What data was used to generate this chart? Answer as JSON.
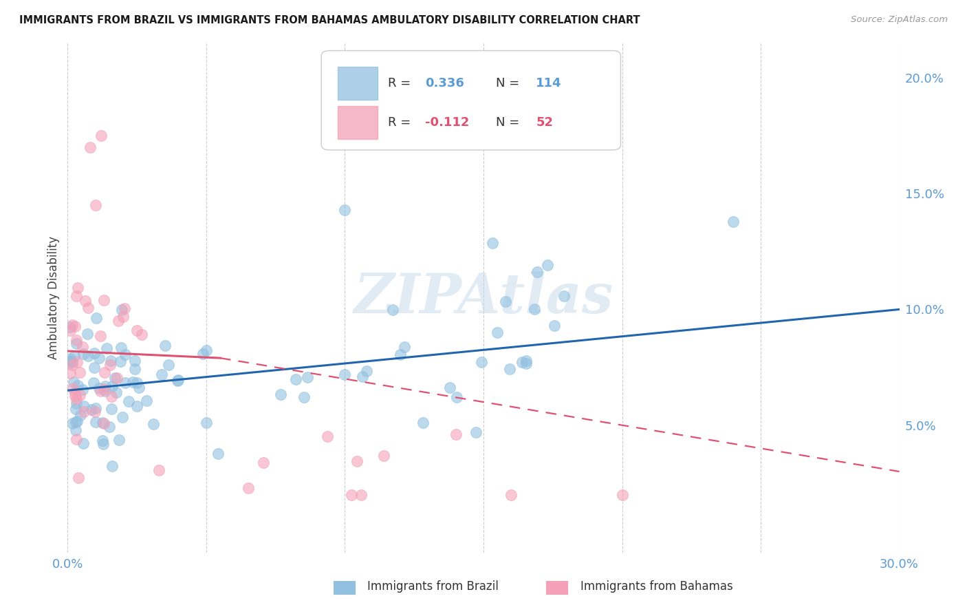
{
  "title": "IMMIGRANTS FROM BRAZIL VS IMMIGRANTS FROM BAHAMAS AMBULATORY DISABILITY CORRELATION CHART",
  "source": "Source: ZipAtlas.com",
  "ylabel": "Ambulatory Disability",
  "xlim": [
    0.0,
    0.3
  ],
  "ylim": [
    -0.005,
    0.215
  ],
  "y_ticks": [
    0.05,
    0.1,
    0.15,
    0.2
  ],
  "y_tick_labels": [
    "5.0%",
    "10.0%",
    "15.0%",
    "20.0%"
  ],
  "brazil_color": "#92c0e0",
  "bahamas_color": "#f4a0b8",
  "brazil_line_color": "#2166ac",
  "bahamas_line_color": "#e05070",
  "brazil_R": 0.336,
  "brazil_N": 114,
  "bahamas_R": -0.112,
  "bahamas_N": 52,
  "legend_label_brazil": "Immigrants from Brazil",
  "legend_label_bahamas": "Immigrants from Bahamas",
  "watermark": "ZIPAtlas",
  "background_color": "#ffffff",
  "grid_color": "#cccccc",
  "axis_label_color": "#5b9bd5",
  "brazil_trendline": [
    0.0,
    0.3,
    0.065,
    0.1
  ],
  "bahamas_trendline_solid": [
    0.0,
    0.055,
    0.082,
    0.079
  ],
  "bahamas_trendline_dash": [
    0.055,
    0.3,
    0.079,
    0.03
  ]
}
